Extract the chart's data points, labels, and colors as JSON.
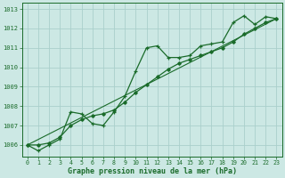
{
  "xlabel": "Graphe pression niveau de la mer (hPa)",
  "background_color": "#cce8e4",
  "plot_bg_color": "#cce8e4",
  "grid_color": "#aacfcb",
  "line_color": "#1a6b2a",
  "hours": [
    0,
    1,
    2,
    3,
    4,
    5,
    6,
    7,
    8,
    9,
    10,
    11,
    12,
    13,
    14,
    15,
    16,
    17,
    18,
    19,
    20,
    21,
    22,
    23
  ],
  "pressure_main": [
    1006.0,
    1005.7,
    1006.0,
    1006.3,
    1007.7,
    1007.6,
    1007.1,
    1007.0,
    1007.7,
    1008.5,
    1009.8,
    1011.0,
    1011.1,
    1010.5,
    1010.5,
    1010.6,
    1011.1,
    1011.2,
    1011.3,
    1012.3,
    1012.65,
    1012.2,
    1012.6,
    1012.5
  ],
  "pressure_smooth": [
    1006.0,
    1006.0,
    1006.1,
    1006.4,
    1007.0,
    1007.3,
    1007.5,
    1007.6,
    1007.8,
    1008.2,
    1008.7,
    1009.1,
    1009.5,
    1009.9,
    1010.2,
    1010.4,
    1010.6,
    1010.8,
    1011.0,
    1011.3,
    1011.7,
    1012.0,
    1012.3,
    1012.5
  ],
  "ref_line": [
    [
      0,
      1006.0
    ],
    [
      23,
      1012.5
    ]
  ],
  "ylim": [
    1005.4,
    1013.3
  ],
  "yticks": [
    1006,
    1007,
    1008,
    1009,
    1010,
    1011,
    1012,
    1013
  ],
  "xticks": [
    0,
    1,
    2,
    3,
    4,
    5,
    6,
    7,
    8,
    9,
    10,
    11,
    12,
    13,
    14,
    15,
    16,
    17,
    18,
    19,
    20,
    21,
    22,
    23
  ]
}
